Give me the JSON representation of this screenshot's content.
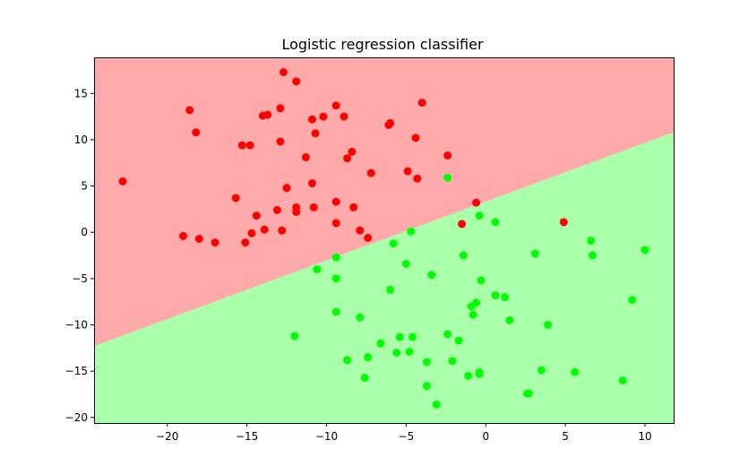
{
  "chart_data": {
    "type": "scatter",
    "title": "Logistic regression classifier",
    "xlabel": "",
    "ylabel": "",
    "xlim": [
      -24.6,
      11.8
    ],
    "ylim": [
      -20.6,
      18.9
    ],
    "xticks": [
      -20,
      -15,
      -10,
      -5,
      0,
      5,
      10
    ],
    "yticks": [
      -20,
      -15,
      -10,
      -5,
      0,
      5,
      10,
      15
    ],
    "xtick_labels": [
      "−20",
      "−15",
      "−10",
      "−5",
      "0",
      "5",
      "10"
    ],
    "ytick_labels": [
      "−20",
      "−15",
      "−10",
      "−5",
      "0",
      "5",
      "10",
      "15"
    ],
    "grid": false,
    "decision_boundary": {
      "x": [
        -24.6,
        11.8
      ],
      "y": [
        -12.3,
        10.8
      ]
    },
    "regions": [
      {
        "name": "class-red",
        "color": "#ffaaaa",
        "side": "above"
      },
      {
        "name": "class-green",
        "color": "#aaffaa",
        "side": "below"
      }
    ],
    "series": [
      {
        "color": "#ff0000",
        "points": [
          [
            -22.8,
            5.5
          ],
          [
            -19.0,
            -0.4
          ],
          [
            -18.6,
            13.2
          ],
          [
            -18.2,
            10.8
          ],
          [
            -18.0,
            -0.7
          ],
          [
            -17.0,
            -1.1
          ],
          [
            -15.7,
            3.7
          ],
          [
            -15.3,
            9.4
          ],
          [
            -15.1,
            -1.1
          ],
          [
            -14.8,
            9.4
          ],
          [
            -14.7,
            -0.1
          ],
          [
            -14.4,
            1.8
          ],
          [
            -14.0,
            12.6
          ],
          [
            -13.9,
            0.3
          ],
          [
            -13.7,
            12.7
          ],
          [
            -13.1,
            2.4
          ],
          [
            -12.9,
            13.4
          ],
          [
            -12.9,
            9.8
          ],
          [
            -12.8,
            0.2
          ],
          [
            -12.7,
            17.3
          ],
          [
            -12.5,
            4.8
          ],
          [
            -11.9,
            16.3
          ],
          [
            -11.9,
            2.7
          ],
          [
            -11.9,
            2.2
          ],
          [
            -11.3,
            8.1
          ],
          [
            -10.9,
            12.2
          ],
          [
            -10.9,
            5.3
          ],
          [
            -10.8,
            2.7
          ],
          [
            -10.7,
            10.7
          ],
          [
            -10.2,
            12.5
          ],
          [
            -9.4,
            13.7
          ],
          [
            -9.4,
            3.3
          ],
          [
            -9.4,
            1.0
          ],
          [
            -8.9,
            12.5
          ],
          [
            -8.7,
            8.0
          ],
          [
            -8.4,
            8.7
          ],
          [
            -8.3,
            2.7
          ],
          [
            -7.9,
            0.2
          ],
          [
            -7.4,
            -0.6
          ],
          [
            -7.2,
            6.4
          ],
          [
            -6.1,
            11.6
          ],
          [
            -6.0,
            11.8
          ],
          [
            -4.9,
            6.6
          ],
          [
            -4.4,
            10.2
          ],
          [
            -4.3,
            5.8
          ],
          [
            -4.0,
            14.0
          ],
          [
            -2.4,
            8.3
          ],
          [
            -1.5,
            0.9
          ],
          [
            -0.6,
            3.2
          ],
          [
            4.9,
            1.1
          ]
        ]
      },
      {
        "color": "#00ff00",
        "points": [
          [
            -12.0,
            -11.2
          ],
          [
            -10.6,
            -4.0
          ],
          [
            -9.4,
            -2.7
          ],
          [
            -9.4,
            -5.0
          ],
          [
            -9.4,
            -8.6
          ],
          [
            -8.7,
            -13.8
          ],
          [
            -7.9,
            -9.2
          ],
          [
            -7.6,
            -15.7
          ],
          [
            -7.4,
            -13.5
          ],
          [
            -6.6,
            -12.0
          ],
          [
            -6.0,
            -6.2
          ],
          [
            -5.8,
            -1.2
          ],
          [
            -5.6,
            -13.0
          ],
          [
            -5.4,
            -11.3
          ],
          [
            -5.0,
            -3.4
          ],
          [
            -4.8,
            -12.9
          ],
          [
            -4.7,
            0.1
          ],
          [
            -4.6,
            -11.3
          ],
          [
            -3.7,
            -14.0
          ],
          [
            -3.7,
            -16.6
          ],
          [
            -3.4,
            -4.6
          ],
          [
            -3.1,
            -18.6
          ],
          [
            -2.4,
            5.9
          ],
          [
            -2.4,
            -11.0
          ],
          [
            -2.1,
            -13.9
          ],
          [
            -1.7,
            -11.7
          ],
          [
            -1.4,
            -2.5
          ],
          [
            -1.1,
            -15.5
          ],
          [
            -0.9,
            -8.0
          ],
          [
            -0.8,
            -8.9
          ],
          [
            -0.6,
            -7.6
          ],
          [
            -0.4,
            1.8
          ],
          [
            -0.4,
            -15.1
          ],
          [
            -0.4,
            -15.3
          ],
          [
            -0.3,
            -5.2
          ],
          [
            0.6,
            1.1
          ],
          [
            0.6,
            -6.8
          ],
          [
            1.2,
            -7.0
          ],
          [
            1.5,
            -9.5
          ],
          [
            2.6,
            -17.4
          ],
          [
            2.7,
            -17.4
          ],
          [
            3.1,
            -2.3
          ],
          [
            3.5,
            -14.9
          ],
          [
            3.9,
            -10.0
          ],
          [
            5.6,
            -15.1
          ],
          [
            6.6,
            -0.9
          ],
          [
            6.7,
            -2.5
          ],
          [
            8.6,
            -16.0
          ],
          [
            9.2,
            -7.3
          ],
          [
            10.0,
            -1.9
          ]
        ]
      }
    ]
  }
}
